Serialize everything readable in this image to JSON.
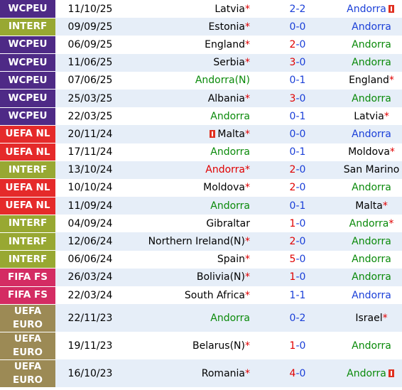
{
  "colors": {
    "WCPEU": "#4e2a86",
    "INTERF": "#98a832",
    "UEFA NL": "#e52a2a",
    "FIFA FS": "#d42c63",
    "UEFA EURO": "#9c8a55",
    "result_D": "#1a3fd8",
    "result_L": "#0a8a0a",
    "result_W": "#e00000"
  },
  "matches": [
    {
      "comp": "WCPEU",
      "date": "11/10/25",
      "home": "Latvia",
      "home_star": "*",
      "home_color": "black",
      "home_card": false,
      "score_home": "2",
      "score_sep": "-",
      "score_away": "2",
      "score_home_color": "blue",
      "away": "Andorra",
      "away_star": "",
      "away_color": "blue",
      "away_card": true,
      "result": "D",
      "result_color": "blue"
    },
    {
      "comp": "INTERF",
      "date": "09/09/25",
      "home": "Estonia",
      "home_star": "*",
      "home_color": "black",
      "home_card": false,
      "score_home": "0",
      "score_sep": "-",
      "score_away": "0",
      "score_home_color": "blue",
      "away": "Andorra",
      "away_star": "",
      "away_color": "blue",
      "away_card": false,
      "result": "D",
      "result_color": "blue"
    },
    {
      "comp": "WCPEU",
      "date": "06/09/25",
      "home": "England",
      "home_star": "*",
      "home_color": "black",
      "home_card": false,
      "score_home": "2",
      "score_sep": "-",
      "score_away": "0",
      "score_home_color": "red",
      "away": "Andorra",
      "away_star": "",
      "away_color": "green",
      "away_card": false,
      "result": "L",
      "result_color": "green"
    },
    {
      "comp": "WCPEU",
      "date": "11/06/25",
      "home": "Serbia",
      "home_star": "*",
      "home_color": "black",
      "home_card": false,
      "score_home": "3",
      "score_sep": "-",
      "score_away": "0",
      "score_home_color": "red",
      "away": "Andorra",
      "away_star": "",
      "away_color": "green",
      "away_card": false,
      "result": "L",
      "result_color": "green"
    },
    {
      "comp": "WCPEU",
      "date": "07/06/25",
      "home": "Andorra(N)",
      "home_star": "",
      "home_color": "green",
      "home_card": false,
      "score_home": "0",
      "score_sep": "-",
      "score_away": "1",
      "score_home_color": "blue",
      "away": "England",
      "away_star": "*",
      "away_color": "black",
      "away_card": false,
      "result": "L",
      "result_color": "green"
    },
    {
      "comp": "WCPEU",
      "date": "25/03/25",
      "home": "Albania",
      "home_star": "*",
      "home_color": "black",
      "home_card": false,
      "score_home": "3",
      "score_sep": "-",
      "score_away": "0",
      "score_home_color": "red",
      "away": "Andorra",
      "away_star": "",
      "away_color": "green",
      "away_card": false,
      "result": "L",
      "result_color": "green"
    },
    {
      "comp": "WCPEU",
      "date": "22/03/25",
      "home": "Andorra",
      "home_star": "",
      "home_color": "green",
      "home_card": false,
      "score_home": "0",
      "score_sep": "-",
      "score_away": "1",
      "score_home_color": "blue",
      "away": "Latvia",
      "away_star": "*",
      "away_color": "black",
      "away_card": false,
      "result": "L",
      "result_color": "green"
    },
    {
      "comp": "UEFA NL",
      "date": "20/11/24",
      "home": "Malta",
      "home_star": "*",
      "home_color": "black",
      "home_card": true,
      "score_home": "0",
      "score_sep": "-",
      "score_away": "0",
      "score_home_color": "blue",
      "away": "Andorra",
      "away_star": "",
      "away_color": "blue",
      "away_card": false,
      "result": "D",
      "result_color": "blue"
    },
    {
      "comp": "UEFA NL",
      "date": "17/11/24",
      "home": "Andorra",
      "home_star": "",
      "home_color": "green",
      "home_card": false,
      "score_home": "0",
      "score_sep": "-",
      "score_away": "1",
      "score_home_color": "blue",
      "away": "Moldova",
      "away_star": "*",
      "away_color": "black",
      "away_card": false,
      "result": "L",
      "result_color": "green"
    },
    {
      "comp": "INTERF",
      "date": "13/10/24",
      "home": "Andorra",
      "home_star": "*",
      "home_color": "red",
      "home_card": false,
      "score_home": "2",
      "score_sep": "-",
      "score_away": "0",
      "score_home_color": "red",
      "away": "San Marino",
      "away_star": "",
      "away_color": "black",
      "away_card": false,
      "result": "W",
      "result_color": "red"
    },
    {
      "comp": "UEFA NL",
      "date": "10/10/24",
      "home": "Moldova",
      "home_star": "*",
      "home_color": "black",
      "home_card": false,
      "score_home": "2",
      "score_sep": "-",
      "score_away": "0",
      "score_home_color": "red",
      "away": "Andorra",
      "away_star": "",
      "away_color": "green",
      "away_card": false,
      "result": "L",
      "result_color": "green"
    },
    {
      "comp": "UEFA NL",
      "date": "11/09/24",
      "home": "Andorra",
      "home_star": "",
      "home_color": "green",
      "home_card": false,
      "score_home": "0",
      "score_sep": "-",
      "score_away": "1",
      "score_home_color": "blue",
      "away": "Malta",
      "away_star": "*",
      "away_color": "black",
      "away_card": false,
      "result": "L",
      "result_color": "green"
    },
    {
      "comp": "INTERF",
      "date": "04/09/24",
      "home": "Gibraltar",
      "home_star": "",
      "home_color": "black",
      "home_card": false,
      "score_home": "1",
      "score_sep": "-",
      "score_away": "0",
      "score_home_color": "red",
      "away": "Andorra",
      "away_star": "*",
      "away_color": "green",
      "away_card": false,
      "result": "L",
      "result_color": "green"
    },
    {
      "comp": "INTERF",
      "date": "12/06/24",
      "home": "Northern Ireland(N)",
      "home_star": "*",
      "home_color": "black",
      "home_card": false,
      "score_home": "2",
      "score_sep": "-",
      "score_away": "0",
      "score_home_color": "red",
      "away": "Andorra",
      "away_star": "",
      "away_color": "green",
      "away_card": false,
      "result": "L",
      "result_color": "green"
    },
    {
      "comp": "INTERF",
      "date": "06/06/24",
      "home": "Spain",
      "home_star": "*",
      "home_color": "black",
      "home_card": false,
      "score_home": "5",
      "score_sep": "-",
      "score_away": "0",
      "score_home_color": "red",
      "away": "Andorra",
      "away_star": "",
      "away_color": "green",
      "away_card": false,
      "result": "L",
      "result_color": "green"
    },
    {
      "comp": "FIFA FS",
      "date": "26/03/24",
      "home": "Bolivia(N)",
      "home_star": "*",
      "home_color": "black",
      "home_card": false,
      "score_home": "1",
      "score_sep": "-",
      "score_away": "0",
      "score_home_color": "red",
      "away": "Andorra",
      "away_star": "",
      "away_color": "green",
      "away_card": false,
      "result": "L",
      "result_color": "green"
    },
    {
      "comp": "FIFA FS",
      "date": "22/03/24",
      "home": "South Africa",
      "home_star": "*",
      "home_color": "black",
      "home_card": false,
      "score_home": "1",
      "score_sep": "-",
      "score_away": "1",
      "score_home_color": "blue",
      "away": "Andorra",
      "away_star": "",
      "away_color": "blue",
      "away_card": false,
      "result": "D",
      "result_color": "blue"
    },
    {
      "comp": "UEFA EURO",
      "date": "22/11/23",
      "home": "Andorra",
      "home_star": "",
      "home_color": "green",
      "home_card": false,
      "score_home": "0",
      "score_sep": "-",
      "score_away": "2",
      "score_home_color": "blue",
      "away": "Israel",
      "away_star": "*",
      "away_color": "black",
      "away_card": false,
      "result": "L",
      "result_color": "green"
    },
    {
      "comp": "UEFA EURO",
      "date": "19/11/23",
      "home": "Belarus(N)",
      "home_star": "*",
      "home_color": "black",
      "home_card": false,
      "score_home": "1",
      "score_sep": "-",
      "score_away": "0",
      "score_home_color": "red",
      "away": "Andorra",
      "away_star": "",
      "away_color": "green",
      "away_card": false,
      "result": "L",
      "result_color": "green"
    },
    {
      "comp": "UEFA EURO",
      "date": "16/10/23",
      "home": "Romania",
      "home_star": "*",
      "home_color": "black",
      "home_card": false,
      "score_home": "4",
      "score_sep": "-",
      "score_away": "0",
      "score_home_color": "red",
      "away": "Andorra",
      "away_star": "",
      "away_color": "green",
      "away_card": true,
      "result": "L",
      "result_color": "green"
    }
  ]
}
